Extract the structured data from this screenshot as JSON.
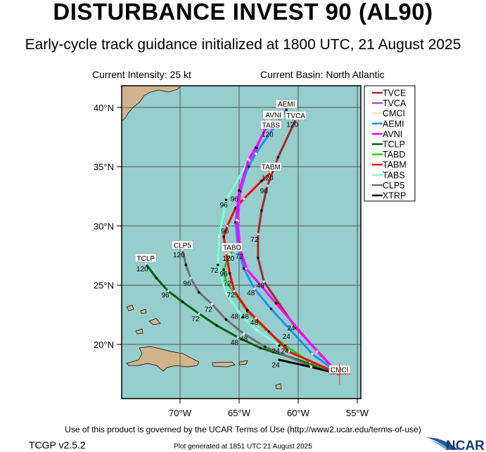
{
  "header": {
    "title": "DISTURBANCE INVEST 90 (AL90)",
    "subtitle": "Early-cycle track guidance initialized at 1800 UTC, 21 August 2025",
    "intensity": "Current Intensity: 25 kt",
    "basin": "Current Basin: North Atlantic"
  },
  "footer": {
    "terms": "Use of this product is governed by the UCAR Terms of Use (http://www2.ucar.edu/terms-of-use)",
    "version": "TCGP v2.5.2",
    "generated": "Plot generated at 1851 UTC   21 August 2025",
    "logo": "NCAR"
  },
  "colors": {
    "ocean": "#96cdcd",
    "land": "#d2b48c",
    "grid": "#555555"
  },
  "map": {
    "lon_range": [
      -74.9,
      -54.8
    ],
    "lat_range": [
      15.4,
      41.8
    ],
    "lat_ticks": [
      {
        "value": 40,
        "label": "40°N"
      },
      {
        "value": 35,
        "label": "35°N"
      },
      {
        "value": 30,
        "label": "30°N"
      },
      {
        "value": 25,
        "label": "25°N"
      },
      {
        "value": 20,
        "label": "20°N"
      }
    ],
    "lon_ticks": [
      {
        "value": -70,
        "label": "70°W"
      },
      {
        "value": -65,
        "label": "65°W"
      },
      {
        "value": -60,
        "label": "60°W"
      },
      {
        "value": -55,
        "label": "55°W"
      }
    ],
    "current_position": [
      17.5,
      -56.5
    ]
  },
  "legend": [
    {
      "name": "TVCE",
      "color": "#a52a2a"
    },
    {
      "name": "TVCA",
      "color": "#bf3eff"
    },
    {
      "name": "CMCI",
      "color": "#ffdead"
    },
    {
      "name": "AEMI",
      "color": "#1e90ff"
    },
    {
      "name": "AVNI",
      "color": "#ff00ff"
    },
    {
      "name": "TCLP",
      "color": "#006400"
    },
    {
      "name": "TABD",
      "color": "#22cc22"
    },
    {
      "name": "TABM",
      "color": "#ff0000"
    },
    {
      "name": "TABS",
      "color": "#7fffd4"
    },
    {
      "name": "CLP5",
      "color": "#707070"
    },
    {
      "name": "XTRP",
      "color": "#000000"
    }
  ],
  "tracks": [
    {
      "name": "TABS",
      "points": [
        [
          17.5,
          -56.5
        ],
        [
          18.5,
          -59.0
        ],
        [
          19.9,
          -61.6
        ],
        [
          21.2,
          -63.5
        ],
        [
          22.3,
          -64.7
        ],
        [
          24.3,
          -66.1
        ],
        [
          26.7,
          -66.8
        ],
        [
          29.1,
          -66.7
        ],
        [
          32.2,
          -66.1
        ],
        [
          34.8,
          -64.6
        ],
        [
          36.4,
          -63.6
        ],
        [
          38.8,
          -62.4
        ]
      ]
    },
    {
      "name": "TCLP",
      "points": [
        [
          17.5,
          -56.5
        ],
        [
          19.0,
          -60.9
        ],
        [
          19.7,
          -63.2
        ],
        [
          20.6,
          -65.1
        ],
        [
          21.6,
          -66.9
        ],
        [
          22.6,
          -68.4
        ],
        [
          23.6,
          -69.8
        ],
        [
          24.5,
          -71.0
        ],
        [
          25.6,
          -72.0
        ],
        [
          26.8,
          -72.9
        ]
      ]
    },
    {
      "name": "CLP5",
      "points": [
        [
          17.5,
          -56.5
        ],
        [
          18.2,
          -59.0
        ],
        [
          19.8,
          -62.8
        ],
        [
          20.9,
          -64.6
        ],
        [
          22.1,
          -66.1
        ],
        [
          23.4,
          -67.3
        ],
        [
          24.4,
          -68.4
        ],
        [
          25.6,
          -69.1
        ],
        [
          26.7,
          -69.5
        ],
        [
          28.0,
          -69.8
        ]
      ]
    },
    {
      "name": "XTRP",
      "points": [
        [
          17.5,
          -56.5
        ],
        [
          18.1,
          -58.9
        ],
        [
          18.7,
          -61.6
        ]
      ]
    },
    {
      "name": "TABD",
      "points": [
        [
          17.5,
          -56.5
        ],
        [
          18.5,
          -59.0
        ],
        [
          19.9,
          -61.1
        ],
        [
          21.1,
          -62.6
        ],
        [
          22.8,
          -64.3
        ],
        [
          25.3,
          -66.1
        ],
        [
          26.3,
          -66.3
        ],
        [
          27.6,
          -65.8
        ],
        [
          28.0,
          -65.4
        ]
      ]
    },
    {
      "name": "TABM",
      "points": [
        [
          17.5,
          -56.5
        ],
        [
          19.4,
          -60.8
        ],
        [
          21.1,
          -62.5
        ],
        [
          22.2,
          -63.6
        ],
        [
          22.9,
          -64.3
        ],
        [
          24.5,
          -65.4
        ],
        [
          26.0,
          -65.8
        ],
        [
          27.7,
          -66.1
        ],
        [
          29.1,
          -66.3
        ],
        [
          30.0,
          -66.0
        ],
        [
          31.5,
          -65.3
        ],
        [
          32.3,
          -64.6
        ],
        [
          33.8,
          -63.1
        ],
        [
          34.5,
          -62.3
        ]
      ]
    },
    {
      "name": "TVCE",
      "points": [
        [
          17.5,
          -56.5
        ],
        [
          18.2,
          -57.2
        ],
        [
          21.4,
          -60.2
        ],
        [
          25.3,
          -62.9
        ],
        [
          27.3,
          -63.4
        ],
        [
          29.3,
          -63.4
        ],
        [
          31.3,
          -63.1
        ],
        [
          33.4,
          -62.6
        ],
        [
          35.8,
          -61.7
        ],
        [
          39.0,
          -60.2
        ]
      ]
    },
    {
      "name": "TVCA",
      "points": [
        [
          17.5,
          -56.5
        ],
        [
          19.3,
          -58.3
        ],
        [
          23.4,
          -61.8
        ],
        [
          26.3,
          -64.3
        ],
        [
          28.0,
          -64.9
        ],
        [
          30.4,
          -65.1
        ],
        [
          32.9,
          -64.9
        ],
        [
          35.5,
          -64.1
        ],
        [
          36.6,
          -63.5
        ],
        [
          38.9,
          -62.5
        ]
      ]
    },
    {
      "name": "AEMI",
      "points": [
        [
          17.5,
          -56.5
        ],
        [
          19.2,
          -58.8
        ],
        [
          23.0,
          -62.3
        ],
        [
          24.7,
          -63.7
        ],
        [
          26.4,
          -64.6
        ],
        [
          28.1,
          -65.1
        ],
        [
          30.3,
          -65.3
        ],
        [
          33.0,
          -65.0
        ],
        [
          35.0,
          -64.2
        ],
        [
          36.1,
          -63.6
        ],
        [
          39.8,
          -61.0
        ]
      ]
    },
    {
      "name": "AVNI",
      "points": [
        [
          17.5,
          -56.5
        ],
        [
          19.4,
          -58.4
        ],
        [
          23.5,
          -61.9
        ],
        [
          26.4,
          -64.4
        ],
        [
          28.1,
          -65.0
        ],
        [
          30.5,
          -65.2
        ],
        [
          33.0,
          -65.0
        ],
        [
          35.6,
          -64.2
        ],
        [
          36.6,
          -63.6
        ],
        [
          38.8,
          -62.4
        ]
      ]
    }
  ],
  "end_labels": [
    {
      "text": "AEMI",
      "lat": 40.3,
      "lon": -61.0
    },
    {
      "text": "AVNI",
      "lat": 39.8,
      "lon": -62.1
    },
    {
      "text": "TABS",
      "lat": 39.2,
      "lon": -62.3
    },
    {
      "text": "TVCA",
      "lat": 39.5,
      "lon": -60.2
    },
    {
      "text": "TABM",
      "lat": 35.0,
      "lon": -62.3
    },
    {
      "text": "TABD",
      "lat": 28.2,
      "lon": -65.6
    },
    {
      "text": "CLP5",
      "lat": 28.4,
      "lon": -69.8
    },
    {
      "text": "TCLP",
      "lat": 27.3,
      "lon": -72.9
    },
    {
      "text": "CMCI",
      "lat": 17.9,
      "lon": -56.5
    }
  ],
  "hour_labels": [
    {
      "text": "120",
      "lat": 26.4,
      "lon": -73.2
    },
    {
      "text": "96",
      "lat": 24.2,
      "lon": -71.25
    },
    {
      "text": "72",
      "lat": 22.2,
      "lon": -68.7
    },
    {
      "text": "48",
      "lat": 20.2,
      "lon": -65.4
    },
    {
      "text": "120",
      "lat": 27.6,
      "lon": -70.1
    },
    {
      "text": "96",
      "lat": 25.2,
      "lon": -69.4
    },
    {
      "text": "72",
      "lat": 23.0,
      "lon": -67.6
    },
    {
      "text": "48",
      "lat": 20.5,
      "lon": -64.9
    },
    {
      "text": "120",
      "lat": 34.1,
      "lon": -62.6
    },
    {
      "text": "96",
      "lat": 33.0,
      "lon": -62.9
    },
    {
      "text": "96",
      "lat": 29.6,
      "lon": -66.2
    },
    {
      "text": "72",
      "lat": 28.9,
      "lon": -63.7
    },
    {
      "text": "120",
      "lat": 38.6,
      "lon": -60.5
    },
    {
      "text": "120",
      "lat": 38.3,
      "lon": -62.6
    },
    {
      "text": "96",
      "lat": 31.8,
      "lon": -66.3
    },
    {
      "text": "96",
      "lat": 32.3,
      "lon": -65.4
    },
    {
      "text": "120",
      "lat": 27.3,
      "lon": -65.9
    },
    {
      "text": "72",
      "lat": 27.9,
      "lon": -65.4
    },
    {
      "text": "72",
      "lat": 26.3,
      "lon": -67.1
    },
    {
      "text": "96",
      "lat": 26.0,
      "lon": -66.5
    },
    {
      "text": "72",
      "lat": 25.6,
      "lon": -66.0
    },
    {
      "text": "72",
      "lat": 24.2,
      "lon": -65.7
    },
    {
      "text": "48",
      "lat": 24.4,
      "lon": -64.0
    },
    {
      "text": "48",
      "lat": 25.0,
      "lon": -63.2
    },
    {
      "text": "48",
      "lat": 22.4,
      "lon": -65.4
    },
    {
      "text": "48",
      "lat": 22.4,
      "lon": -64.5
    },
    {
      "text": "48",
      "lat": 21.9,
      "lon": -63.9
    },
    {
      "text": "24",
      "lat": 20.7,
      "lon": -61.0
    },
    {
      "text": "24",
      "lat": 21.0,
      "lon": -60.6
    },
    {
      "text": "24",
      "lat": 19.5,
      "lon": -61.9
    },
    {
      "text": "24",
      "lat": 19.5,
      "lon": -61.3
    },
    {
      "text": "24",
      "lat": 18.3,
      "lon": -61.9
    }
  ]
}
